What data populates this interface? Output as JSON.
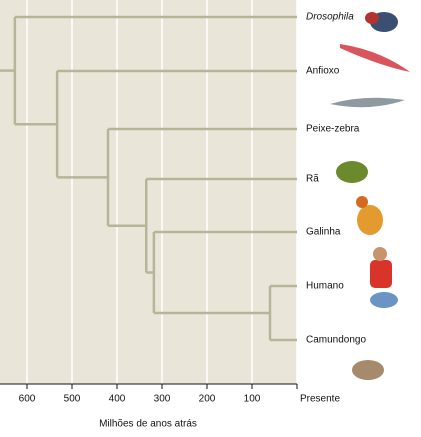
{
  "axis": {
    "label": "Milhões de anos atrás",
    "xlim": [
      660,
      0
    ],
    "ticks": [
      600,
      500,
      400,
      300,
      200,
      100,
      {
        "value": 0,
        "label": "Presente"
      }
    ]
  },
  "tree": {
    "time": 627,
    "children": [
      {
        "label": "Drosophila"
      },
      {
        "time": 533,
        "children": [
          {
            "label": "Anfioxo"
          },
          {
            "time": 420,
            "children": [
              {
                "label": "Peixe-zebra"
              },
              {
                "time": 335,
                "children": [
                  {
                    "label": "Rã"
                  },
                  {
                    "time": 318,
                    "children": [
                      {
                        "label": "Galinha"
                      },
                      {
                        "time": 60,
                        "children": [
                          {
                            "label": "Humano"
                          },
                          {
                            "label": "Camundongo"
                          }
                        ]
                      }
                    ]
                  }
                ]
              }
            ]
          }
        ]
      }
    ]
  }
}
